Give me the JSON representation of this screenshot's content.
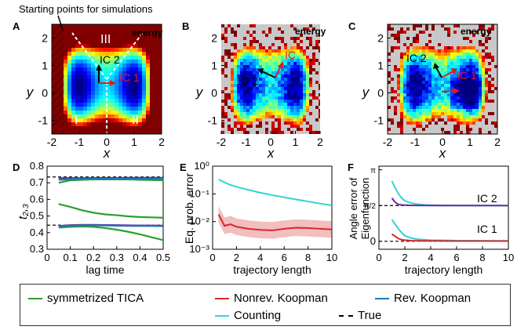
{
  "colors": {
    "sym_tica": "#2ca02c",
    "nonrev": "#d62728",
    "rev": "#1f77b4",
    "counting": "#2fd4d4",
    "true": "#000000",
    "purple": "#6a2ca0"
  },
  "chart_data": [
    {
      "panel": "A",
      "type": "heatmap",
      "title": "",
      "xlabel": "x",
      "ylabel": "y",
      "xlim": [
        -2,
        2
      ],
      "ylim": [
        -1.5,
        2.5
      ],
      "xticks": [
        "-2",
        "-1",
        "0",
        "1",
        "2"
      ],
      "yticks": [
        "2",
        "1",
        "0",
        "-1"
      ],
      "annotations": [
        "Starting points for simulations",
        "energy",
        "IC 2",
        "IC 1",
        "I",
        "II",
        "III"
      ]
    },
    {
      "panel": "B",
      "type": "heatmap",
      "title": "",
      "xlabel": "x",
      "ylabel": "y",
      "xlim": [
        -2,
        2
      ],
      "ylim": [
        -1.5,
        2.5
      ],
      "xticks": [
        "-2",
        "-1",
        "0",
        "1",
        "2"
      ],
      "yticks": [
        "2",
        "1",
        "0",
        "-1"
      ],
      "annotations": [
        "energy",
        "IC 2",
        "IC"
      ]
    },
    {
      "panel": "C",
      "type": "heatmap",
      "title": "",
      "xlabel": "x",
      "ylabel": "y",
      "xlim": [
        -2,
        2
      ],
      "ylim": [
        -1.5,
        2.5
      ],
      "xticks": [
        "-2",
        "-1",
        "0",
        "1",
        "2"
      ],
      "yticks": [
        "2",
        "1",
        "0",
        "-1"
      ],
      "annotations": [
        "energy",
        "IC 2",
        "IC 1"
      ]
    },
    {
      "panel": "D",
      "type": "line",
      "xlabel": "lag time",
      "ylabel": "t₂,₃",
      "xlim": [
        0,
        0.5
      ],
      "ylim": [
        0.3,
        0.8
      ],
      "xticks": [
        "0",
        "0.1",
        "0.2",
        "0.3",
        "0.4",
        "0.5"
      ],
      "yticks": [
        "0.3",
        "0.4",
        "0.5",
        "0.6",
        "0.7",
        "0.8"
      ],
      "x": [
        0.05,
        0.1,
        0.15,
        0.2,
        0.25,
        0.3,
        0.35,
        0.4,
        0.45,
        0.5
      ],
      "hlines": [
        0.735,
        0.445
      ],
      "series": [
        {
          "name": "symmetrized TICA",
          "values": [
            0.7,
            0.715,
            0.718,
            0.72,
            0.72,
            0.72,
            0.72,
            0.718,
            0.717,
            0.715
          ]
        },
        {
          "name": "symmetrized TICA",
          "values": [
            0.572,
            0.555,
            0.535,
            0.52,
            0.51,
            0.505,
            0.498,
            0.494,
            0.492,
            0.49
          ]
        },
        {
          "name": "symmetrized TICA",
          "values": [
            0.43,
            0.435,
            0.437,
            0.435,
            0.428,
            0.418,
            0.405,
            0.39,
            0.372,
            0.355
          ]
        },
        {
          "name": "Nonrev. Koopman",
          "values": [
            0.728,
            0.728,
            0.728,
            0.729,
            0.729,
            0.729,
            0.73,
            0.73,
            0.73,
            0.73
          ]
        },
        {
          "name": "Rev. Koopman",
          "values": [
            0.718,
            0.722,
            0.724,
            0.724,
            0.724,
            0.724,
            0.724,
            0.724,
            0.724,
            0.724
          ]
        },
        {
          "name": "Nonrev. Koopman",
          "values": [
            0.44,
            0.445,
            0.447,
            0.447,
            0.446,
            0.445,
            0.444,
            0.443,
            0.443,
            0.442
          ]
        },
        {
          "name": "Rev. Koopman",
          "values": [
            0.438,
            0.442,
            0.444,
            0.444,
            0.443,
            0.442,
            0.441,
            0.44,
            0.44,
            0.439
          ]
        }
      ]
    },
    {
      "panel": "E",
      "type": "line",
      "xlabel": "trajectory length",
      "ylabel": "Eq. prob. error",
      "yscale": "log",
      "xlim": [
        0,
        10
      ],
      "ylim": [
        0.001,
        1
      ],
      "xticks": [
        "0",
        "2",
        "4",
        "6",
        "8",
        "10"
      ],
      "yticks": [
        "10⁰",
        "10⁻¹",
        "10⁻²",
        "10⁻³"
      ],
      "x": [
        0.5,
        1,
        1.5,
        2,
        3,
        4,
        5,
        6,
        7,
        8,
        9,
        10
      ],
      "series": [
        {
          "name": "Counting",
          "values": [
            0.33,
            0.26,
            0.21,
            0.18,
            0.14,
            0.11,
            0.09,
            0.075,
            0.063,
            0.053,
            0.045,
            0.038
          ]
        },
        {
          "name": "Nonrev. Koopman",
          "values": [
            0.018,
            0.007,
            0.008,
            0.0065,
            0.0055,
            0.005,
            0.0048,
            0.0055,
            0.006,
            0.0058,
            0.0055,
            0.0052
          ]
        }
      ]
    },
    {
      "panel": "F",
      "type": "line",
      "xlabel": "trajectory length",
      "ylabel": "Angle error of Eigenfunction",
      "xlim": [
        0,
        10
      ],
      "xticks": [
        "0",
        "2",
        "4",
        "6",
        "8",
        "10"
      ],
      "yticks": [
        "0",
        "π/2",
        "π"
      ],
      "annotations": [
        "IC 2",
        "IC 1"
      ],
      "x": [
        1,
        1.25,
        1.5,
        1.75,
        2,
        2.5,
        3,
        3.5,
        4,
        5,
        6,
        7,
        8,
        9,
        10
      ],
      "series": [
        {
          "name": "Counting",
          "values": [
            2.65,
            2.35,
            2.1,
            1.9,
            1.78,
            1.68,
            1.63,
            1.6,
            1.59,
            1.58,
            1.575,
            1.572,
            1.571,
            1.571,
            1.571
          ]
        },
        {
          "name": "Nonrev. Koopman",
          "values": [
            1.9,
            1.72,
            1.62,
            1.6,
            1.59,
            1.58,
            1.575,
            1.572,
            1.571,
            1.571,
            1.571,
            1.571,
            1.571,
            1.571,
            1.571
          ]
        },
        {
          "name": "Counting",
          "values": [
            0.95,
            0.75,
            0.55,
            0.38,
            0.25,
            0.14,
            0.09,
            0.07,
            0.05,
            0.04,
            0.03,
            0.03,
            0.025,
            0.02,
            0.02
          ]
        },
        {
          "name": "Nonrev. Koopman",
          "values": [
            0.32,
            0.22,
            0.12,
            0.07,
            0.05,
            0.03,
            0.02,
            0.02,
            0.02,
            0.015,
            0.01,
            0.01,
            0.01,
            0.01,
            0.01
          ]
        }
      ]
    }
  ],
  "legend": [
    {
      "label": "symmetrized TICA",
      "color": "#2ca02c",
      "style": "solid"
    },
    {
      "label": "Nonrev. Koopman",
      "color": "#d62728",
      "style": "solid"
    },
    {
      "label": "Rev. Koopman",
      "color": "#1f77b4",
      "style": "solid"
    },
    {
      "label": "Counting",
      "color": "#2fd4d4",
      "style": "solid"
    },
    {
      "label": "True",
      "color": "#000000",
      "style": "dashed"
    }
  ]
}
